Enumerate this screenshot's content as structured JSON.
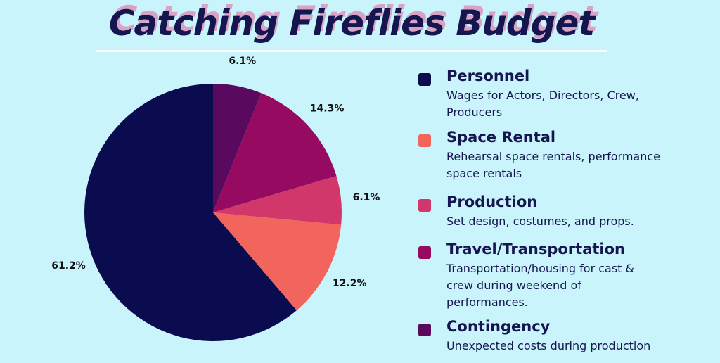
{
  "chart_data": {
    "type": "pie",
    "title": "Catching Fireflies Budget",
    "direction": "counterclockwise",
    "series": [
      {
        "name": "Personnel",
        "description": "Wages for Actors, Directors, Crew, Producers",
        "color": "#0b0b4f",
        "values": [
          61.2
        ],
        "value_labels": [
          "61.2%"
        ]
      },
      {
        "name": "Space Rental",
        "description": "Rehearsal space rentals, performance space rentals",
        "color": "#f2655c",
        "values": [
          12.2
        ],
        "value_labels": [
          "12.2%"
        ]
      },
      {
        "name": "Production",
        "description": "Set design, costumes, and props.",
        "color": "#d1376a",
        "values": [
          6.1
        ],
        "value_labels": [
          "6.1%"
        ]
      },
      {
        "name": "Travel/Transportation",
        "description": "Transportation/housing for cast & crew during weekend of performances.",
        "color": "#970a61",
        "values": [
          14.3
        ],
        "value_labels": [
          "14.3%"
        ]
      },
      {
        "name": "Contingency",
        "description": "Unexpected costs during production",
        "color": "#5a0a5e",
        "values": [
          6.1
        ],
        "value_labels": [
          "6.1%"
        ]
      }
    ]
  }
}
